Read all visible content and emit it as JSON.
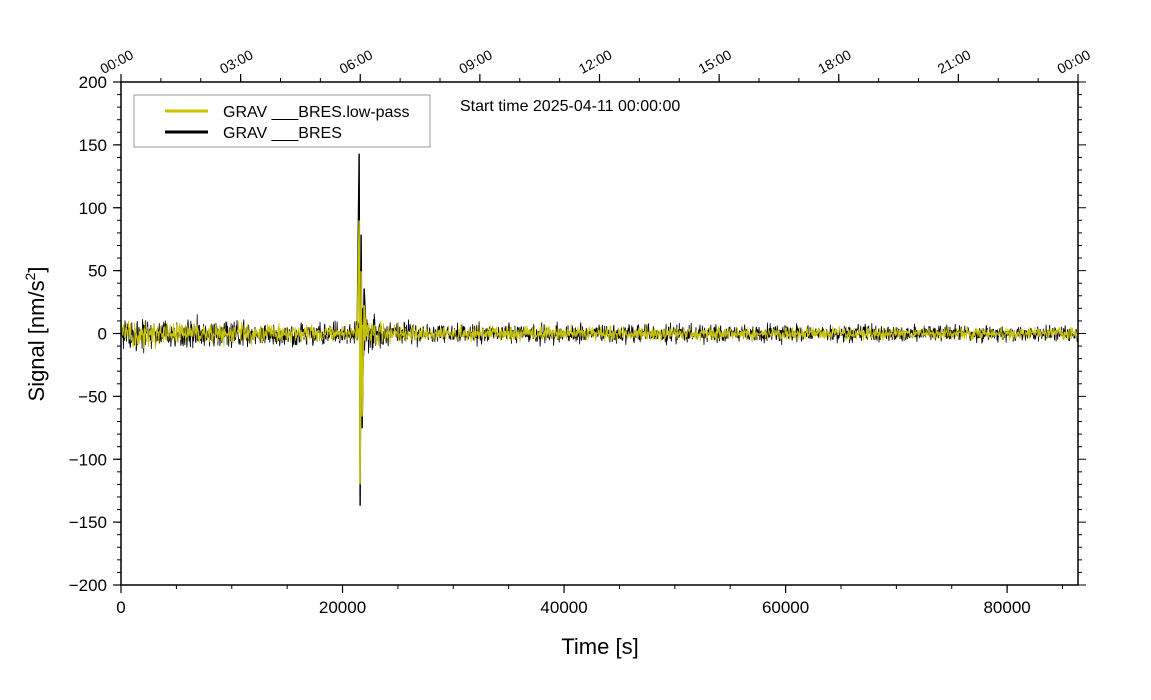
{
  "chart_data": {
    "type": "line",
    "xlabel": "Time [s]",
    "ylabel_main": "Signal [nm/s",
    "ylabel_sup": "2",
    "ylabel_end": "]",
    "xlim": [
      0,
      86400
    ],
    "ylim": [
      -200,
      200
    ],
    "x_ticks": [
      0,
      20000,
      40000,
      60000,
      80000
    ],
    "x_tick_labels": [
      "0",
      "20000",
      "40000",
      "60000",
      "80000"
    ],
    "x_minor_step": 5000,
    "y_ticks": [
      -200,
      -150,
      -100,
      -50,
      0,
      50,
      100,
      150,
      200
    ],
    "y_tick_labels": [
      "−200",
      "−150",
      "−100",
      "−50",
      "0",
      "50",
      "100",
      "150",
      "200"
    ],
    "y_minor_step": 10,
    "top_axis_ticks": [
      0,
      10800,
      21600,
      32400,
      43200,
      54000,
      64800,
      75600,
      86400
    ],
    "top_axis_labels": [
      "00:00",
      "03:00",
      "06:00",
      "09:00",
      "12:00",
      "15:00",
      "18:00",
      "21:00",
      "00:00"
    ],
    "top_minor_step": 3600,
    "annotation": "Start time 2025-04-11 00:00:00",
    "legend_placement": "top-left",
    "grid": false,
    "series": [
      {
        "name": "GRAV ___BRES",
        "color": "#000000",
        "event_time": 21500,
        "peak_max": 143,
        "peak_min": -137,
        "envelope": [
          [
            0,
            22
          ],
          [
            10000,
            16
          ],
          [
            20000,
            13
          ],
          [
            30000,
            12
          ],
          [
            50000,
            11
          ],
          [
            70000,
            10
          ],
          [
            86400,
            9
          ]
        ]
      },
      {
        "name": "GRAV ___BRES.low-pass",
        "color": "#c8c400",
        "event_time": 21500,
        "peak_max": 90,
        "peak_min": -120,
        "envelope": [
          [
            0,
            16
          ],
          [
            10000,
            12
          ],
          [
            20000,
            10
          ],
          [
            30000,
            8
          ],
          [
            50000,
            8
          ],
          [
            70000,
            7
          ],
          [
            86400,
            7
          ]
        ]
      }
    ]
  }
}
